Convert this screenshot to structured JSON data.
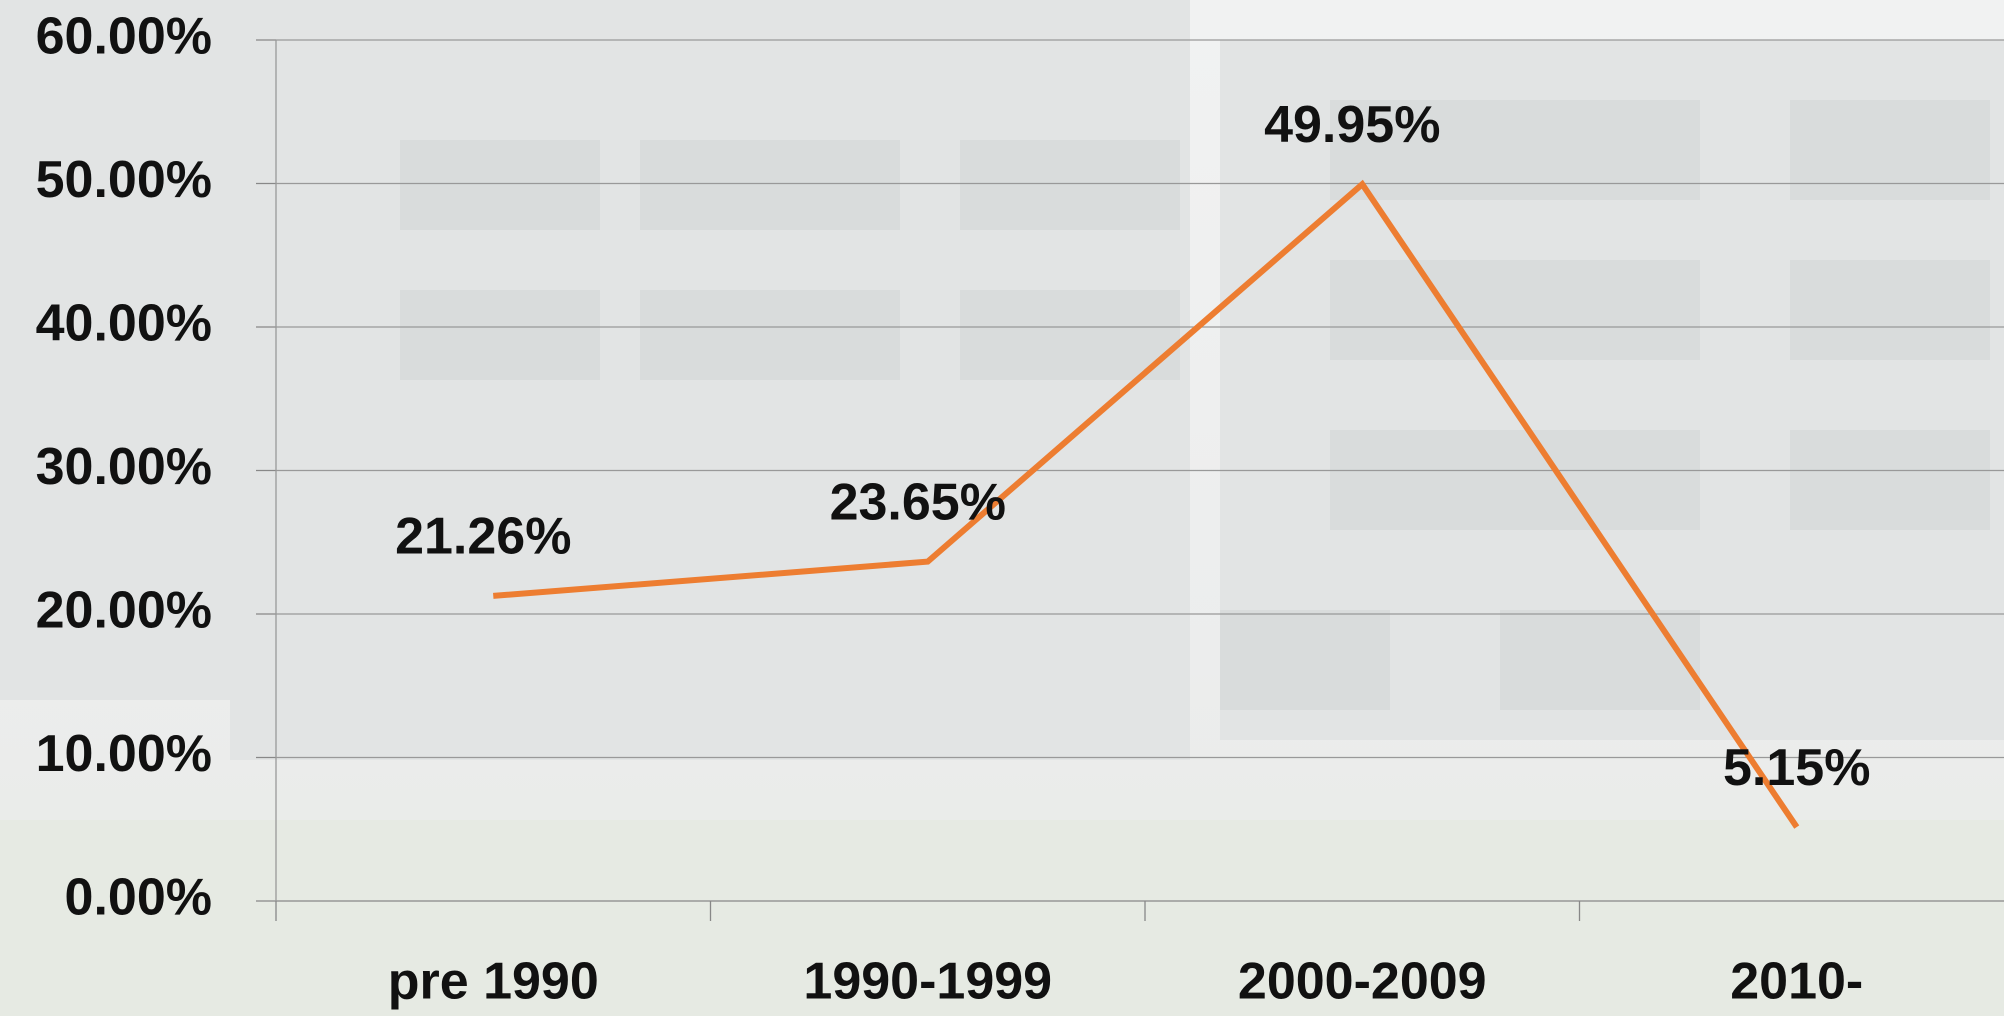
{
  "chart_data": {
    "type": "line",
    "categories": [
      "pre 1990",
      "1990-1999",
      "2000-2009",
      "2010-"
    ],
    "values": [
      21.26,
      23.65,
      49.95,
      5.15
    ],
    "value_labels": [
      "21.26%",
      "23.65%",
      "49.95%",
      "5.15%"
    ],
    "color": "#ed7d31",
    "ylim": [
      0,
      60
    ],
    "yticks": [
      {
        "value": 0,
        "label": "0.00%"
      },
      {
        "value": 10,
        "label": "10.00%"
      },
      {
        "value": 20,
        "label": "20.00%"
      },
      {
        "value": 30,
        "label": "30.00%"
      },
      {
        "value": 40,
        "label": "40.00%"
      },
      {
        "value": 50,
        "label": "50.00%"
      },
      {
        "value": 60,
        "label": "60.00%"
      }
    ],
    "grid": true
  }
}
